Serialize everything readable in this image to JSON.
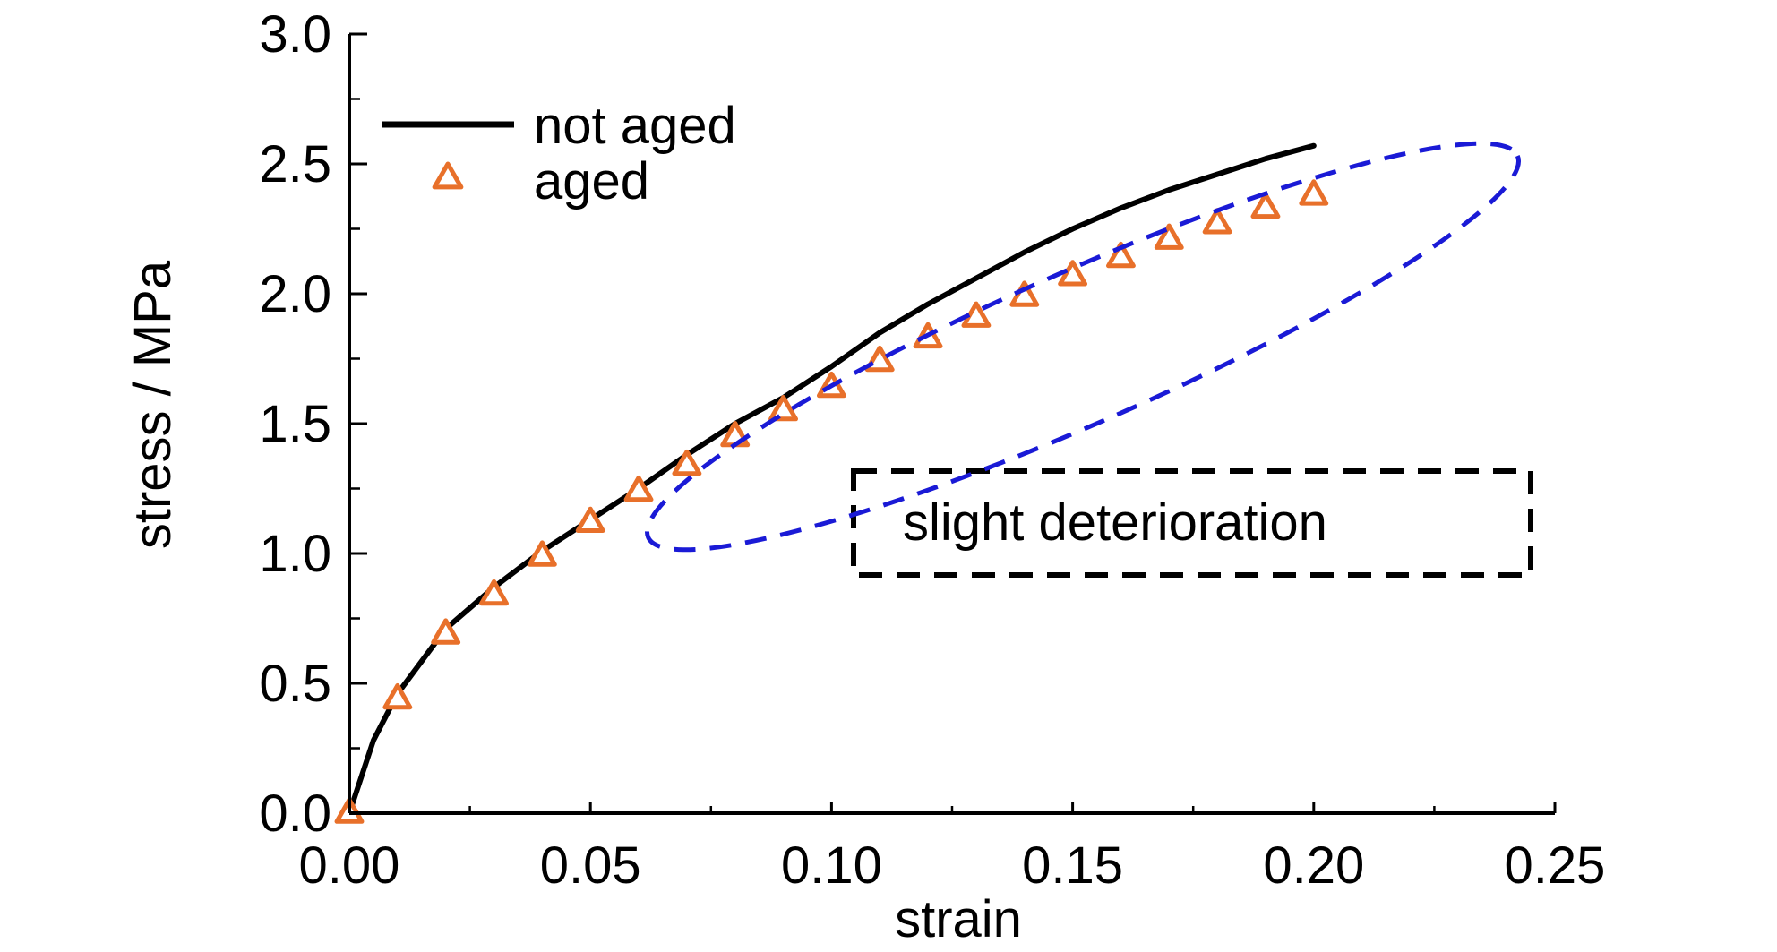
{
  "chart_data": {
    "type": "line",
    "xlabel": "strain",
    "ylabel": "stress / MPa",
    "xlim": [
      0,
      0.25
    ],
    "ylim": [
      0,
      3.0
    ],
    "x_ticks": [
      "0.00",
      "0.05",
      "0.10",
      "0.15",
      "0.20",
      "0.25"
    ],
    "y_ticks": [
      "0.0",
      "0.5",
      "1.0",
      "1.5",
      "2.0",
      "2.5",
      "3.0"
    ],
    "grid": false,
    "legend_position": "top-left",
    "series": [
      {
        "name": "not aged",
        "style": "line",
        "color": "#000000",
        "x": [
          0,
          0.005,
          0.01,
          0.02,
          0.03,
          0.04,
          0.05,
          0.06,
          0.07,
          0.08,
          0.09,
          0.1,
          0.11,
          0.12,
          0.13,
          0.14,
          0.15,
          0.16,
          0.17,
          0.18,
          0.19,
          0.2
        ],
        "y": [
          0,
          0.28,
          0.46,
          0.71,
          0.87,
          1.01,
          1.13,
          1.25,
          1.38,
          1.5,
          1.6,
          1.72,
          1.85,
          1.96,
          2.06,
          2.16,
          2.25,
          2.33,
          2.4,
          2.46,
          2.52,
          2.57
        ]
      },
      {
        "name": "aged",
        "style": "marker",
        "marker": "triangle-open",
        "color": "#E8702A",
        "x": [
          0,
          0.01,
          0.02,
          0.03,
          0.04,
          0.05,
          0.06,
          0.07,
          0.08,
          0.09,
          0.1,
          0.11,
          0.12,
          0.13,
          0.14,
          0.15,
          0.16,
          0.17,
          0.18,
          0.19,
          0.2
        ],
        "y": [
          0,
          0.44,
          0.69,
          0.84,
          0.99,
          1.12,
          1.24,
          1.34,
          1.45,
          1.55,
          1.64,
          1.74,
          1.83,
          1.91,
          1.99,
          2.07,
          2.14,
          2.21,
          2.27,
          2.33,
          2.38
        ]
      }
    ],
    "annotations": [
      {
        "text": "slight deterioration",
        "border": "dashed",
        "border_color": "#000000"
      },
      {
        "shape": "dashed-ellipse",
        "color": "#1A1AD6",
        "x_range": [
          0.055,
          0.21
        ],
        "y_range": [
          1.25,
          2.5
        ]
      }
    ]
  }
}
